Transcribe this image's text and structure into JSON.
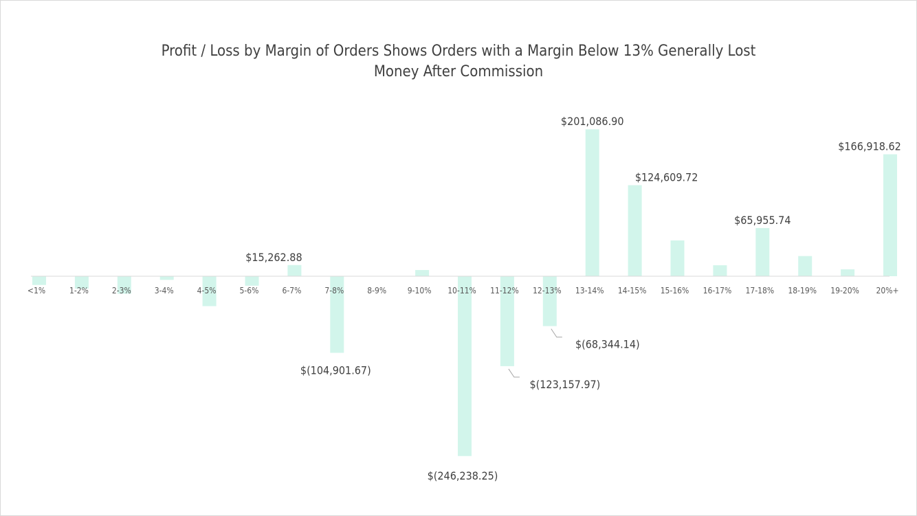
{
  "chart_data": {
    "type": "bar",
    "title": "Profit / Loss by Margin of Orders Shows Orders with a Margin Below 13% Generally Lost Money After Commission",
    "title_lines": [
      "Profit / Loss by Margin of Orders Shows Orders with a Margin Below 13% Generally Lost",
      "Money After Commission"
    ],
    "xlabel": "",
    "ylabel": "",
    "categories": [
      "<1%",
      "1-2%",
      "2-3%",
      "3-4%",
      "4-5%",
      "5-6%",
      "6-7%",
      "7-8%",
      "8-9%",
      "9-10%",
      "10-11%",
      "11-12%",
      "12-13%",
      "13-14%",
      "14-15%",
      "15-16%",
      "16-17%",
      "17-18%",
      "18-19%",
      "19-20%",
      "20%+"
    ],
    "values": [
      -12000,
      -17000,
      -24000,
      -5000,
      -41000,
      -13000,
      15262.88,
      -104901.67,
      0,
      8500,
      -246238.25,
      -123157.97,
      -68344.14,
      201086.9,
      124609.72,
      49000,
      15000,
      65955.74,
      27600,
      9400,
      166918.62
    ],
    "data_labels": {
      "6-7%": "$15,262.88",
      "7-8%": "$(104,901.67)",
      "10-11%": "$(246,238.25)",
      "11-12%": "$(123,157.97)",
      "12-13%": "$(68,344.14)",
      "13-14%": "$201,086.90",
      "14-15%": "$124,609.72",
      "17-18%": "$65,955.74",
      "20%+": "$166,918.62"
    },
    "ylim": [
      -250000,
      210000
    ],
    "grid": false,
    "legend": "none",
    "colors": {
      "bar": "#d2f5eb",
      "axis": "#d9d9d9",
      "text": "#404040"
    }
  }
}
